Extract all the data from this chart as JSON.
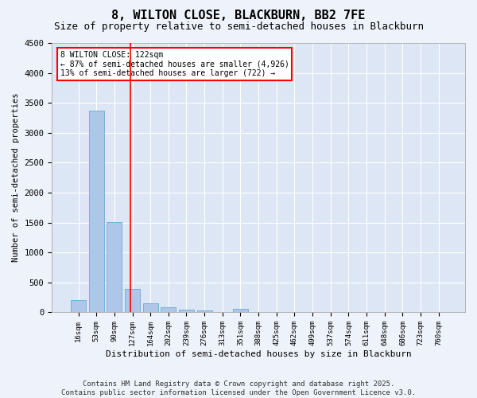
{
  "title": "8, WILTON CLOSE, BLACKBURN, BB2 7FE",
  "subtitle": "Size of property relative to semi-detached houses in Blackburn",
  "xlabel": "Distribution of semi-detached houses by size in Blackburn",
  "ylabel": "Number of semi-detached properties",
  "categories": [
    "16sqm",
    "53sqm",
    "90sqm",
    "127sqm",
    "164sqm",
    "202sqm",
    "239sqm",
    "276sqm",
    "313sqm",
    "351sqm",
    "388sqm",
    "425sqm",
    "462sqm",
    "499sqm",
    "537sqm",
    "574sqm",
    "611sqm",
    "648sqm",
    "686sqm",
    "723sqm",
    "760sqm"
  ],
  "values": [
    210,
    3370,
    1510,
    390,
    150,
    80,
    45,
    30,
    0,
    60,
    0,
    0,
    0,
    0,
    0,
    0,
    0,
    0,
    0,
    0,
    0
  ],
  "bar_color": "#aec6e8",
  "bar_edge_color": "#6aaad4",
  "vline_x": 2.87,
  "vline_color": "red",
  "annotation_title": "8 WILTON CLOSE: 122sqm",
  "annotation_line1": "← 87% of semi-detached houses are smaller (4,926)",
  "annotation_line2": "13% of semi-detached houses are larger (722) →",
  "annotation_box_color": "red",
  "ylim": [
    0,
    4500
  ],
  "yticks": [
    0,
    500,
    1000,
    1500,
    2000,
    2500,
    3000,
    3500,
    4000,
    4500
  ],
  "bg_color": "#eef2fa",
  "plot_bg_color": "#dde6f5",
  "grid_color": "white",
  "footer_line1": "Contains HM Land Registry data © Crown copyright and database right 2025.",
  "footer_line2": "Contains public sector information licensed under the Open Government Licence v3.0.",
  "title_fontsize": 11,
  "subtitle_fontsize": 9,
  "footer_fontsize": 6.5
}
